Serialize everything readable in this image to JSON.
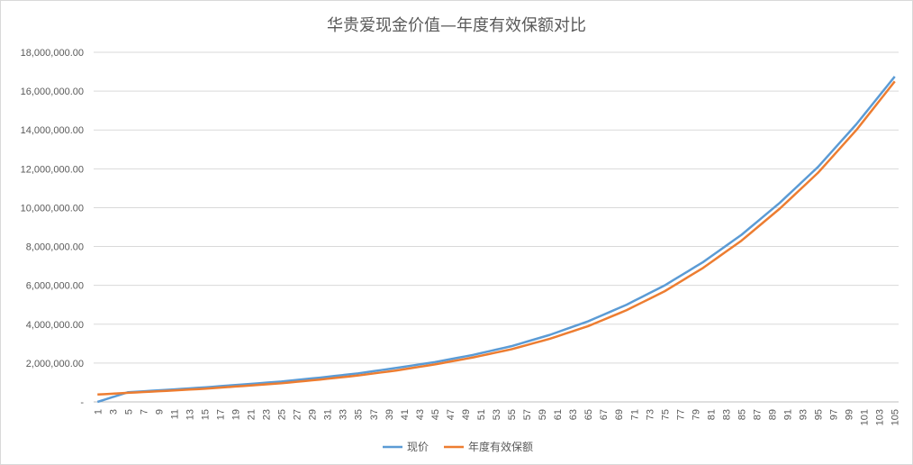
{
  "chart_data": {
    "type": "line",
    "title": "华贵爱现金价值—年度有效保额对比",
    "xlabel": "",
    "ylabel": "",
    "x_range": [
      1,
      105
    ],
    "x_tick_labels": [
      "1",
      "3",
      "5",
      "7",
      "9",
      "11",
      "13",
      "15",
      "17",
      "19",
      "21",
      "23",
      "25",
      "27",
      "29",
      "31",
      "33",
      "35",
      "37",
      "39",
      "41",
      "43",
      "45",
      "47",
      "49",
      "51",
      "53",
      "55",
      "57",
      "59",
      "61",
      "63",
      "65",
      "67",
      "69",
      "71",
      "73",
      "75",
      "77",
      "79",
      "81",
      "83",
      "85",
      "87",
      "89",
      "91",
      "93",
      "95",
      "97",
      "99",
      "101",
      "103",
      "105"
    ],
    "y_tick_labels": [
      "-",
      "2,000,000.00",
      "4,000,000.00",
      "6,000,000.00",
      "8,000,000.00",
      "10,000,000.00",
      "12,000,000.00",
      "14,000,000.00",
      "16,000,000.00",
      "18,000,000.00"
    ],
    "ylim": [
      0,
      18000000
    ],
    "grid": "horizontal",
    "legend": "bottom",
    "series": [
      {
        "name": "现价",
        "color": "#5b9bd5",
        "points": [
          [
            1,
            0
          ],
          [
            5,
            500000
          ],
          [
            10,
            620000
          ],
          [
            15,
            750000
          ],
          [
            20,
            900000
          ],
          [
            25,
            1050000
          ],
          [
            30,
            1250000
          ],
          [
            35,
            1470000
          ],
          [
            40,
            1750000
          ],
          [
            45,
            2050000
          ],
          [
            50,
            2420000
          ],
          [
            55,
            2870000
          ],
          [
            60,
            3450000
          ],
          [
            65,
            4150000
          ],
          [
            70,
            5000000
          ],
          [
            75,
            6000000
          ],
          [
            80,
            7200000
          ],
          [
            85,
            8600000
          ],
          [
            90,
            10250000
          ],
          [
            95,
            12100000
          ],
          [
            100,
            14300000
          ],
          [
            105,
            16750000
          ]
        ]
      },
      {
        "name": "年度有效保额",
        "color": "#ed7d31",
        "points": [
          [
            1,
            380000
          ],
          [
            5,
            470000
          ],
          [
            10,
            570000
          ],
          [
            15,
            680000
          ],
          [
            20,
            820000
          ],
          [
            25,
            960000
          ],
          [
            30,
            1150000
          ],
          [
            35,
            1360000
          ],
          [
            40,
            1620000
          ],
          [
            45,
            1930000
          ],
          [
            50,
            2290000
          ],
          [
            55,
            2710000
          ],
          [
            60,
            3250000
          ],
          [
            65,
            3900000
          ],
          [
            70,
            4720000
          ],
          [
            75,
            5700000
          ],
          [
            80,
            6900000
          ],
          [
            85,
            8300000
          ],
          [
            90,
            9950000
          ],
          [
            95,
            11800000
          ],
          [
            100,
            14000000
          ],
          [
            105,
            16500000
          ]
        ]
      }
    ]
  }
}
